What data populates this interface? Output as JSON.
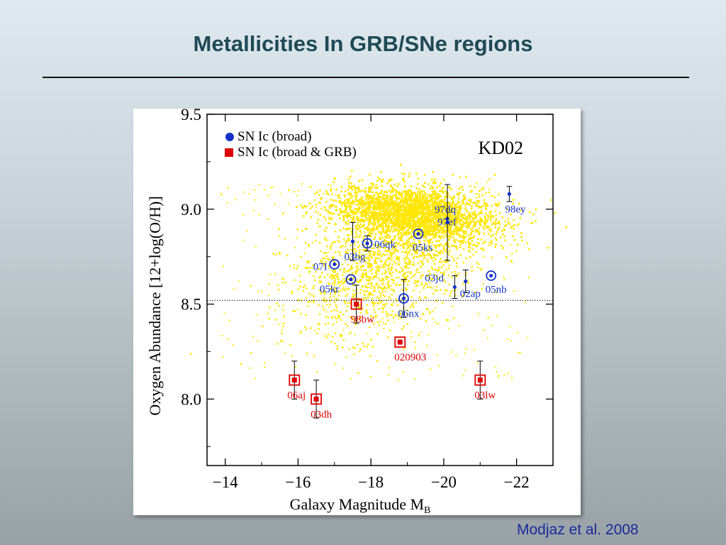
{
  "slide": {
    "title": "Metallicities In GRB/SNe regions",
    "citation": "Modjaz et al. 2008"
  },
  "chart_data": {
    "type": "scatter",
    "title": "",
    "annotation": "KD02",
    "xlabel": "Galaxy Magnitude M",
    "xlabel_subscript": "B",
    "ylabel": "Oxygen Abundance [12+log(O/H)]",
    "xlim": [
      -13.5,
      -23
    ],
    "ylim": [
      7.65,
      9.5
    ],
    "x_axis_reversed": true,
    "x_ticks": [
      -14,
      -16,
      -18,
      -20,
      -22
    ],
    "x_tick_labels": [
      "−14",
      "−16",
      "−18",
      "−20",
      "−22"
    ],
    "y_ticks": [
      8.0,
      8.5,
      9.0,
      9.5
    ],
    "y_tick_labels": [
      "8.0",
      "8.5",
      "9.0",
      "9.5"
    ],
    "reference_line": {
      "y": 8.52,
      "style": "dotted"
    },
    "legend_position": "top-left",
    "background_cloud": {
      "color": "#ffe600",
      "description_shown": false
    },
    "series": [
      {
        "name": "SN Ic (broad)",
        "marker": "circle",
        "color": "#1432c8",
        "points": [
          {
            "label": "98ey",
            "x": -21.8,
            "y": 9.08,
            "err": 0.04,
            "ring": false
          },
          {
            "label": "97dq",
            "x": -20.1,
            "y": 8.95,
            "err": 0.0,
            "ring": false
          },
          {
            "label": "97ef",
            "x": -20.1,
            "y": 8.93,
            "err": 0.2,
            "ring": false
          },
          {
            "label": "05ks",
            "x": -19.3,
            "y": 8.87,
            "err": 0.0,
            "ring": true
          },
          {
            "label": "06qk",
            "x": -17.9,
            "y": 8.82,
            "err": 0.04,
            "ring": true
          },
          {
            "label": "03bg",
            "x": -17.5,
            "y": 8.83,
            "err": 0.1,
            "ring": false
          },
          {
            "label": "07I",
            "x": -17.0,
            "y": 8.71,
            "err": 0.0,
            "ring": true
          },
          {
            "label": "05kr",
            "x": -17.45,
            "y": 8.63,
            "err": 0.0,
            "ring": true
          },
          {
            "label": "06nx",
            "x": -18.9,
            "y": 8.53,
            "err": 0.1,
            "ring": true
          },
          {
            "label": "03jd",
            "x": -20.3,
            "y": 8.59,
            "err": 0.06,
            "ring": false
          },
          {
            "label": "02ap",
            "x": -20.6,
            "y": 8.62,
            "err": 0.06,
            "ring": false
          },
          {
            "label": "05nb",
            "x": -21.3,
            "y": 8.65,
            "err": 0.0,
            "ring": true
          }
        ]
      },
      {
        "name": "SN Ic (broad & GRB)",
        "marker": "square",
        "color": "#e00000",
        "points": [
          {
            "label": "98bw",
            "x": -17.6,
            "y": 8.5,
            "err": 0.1,
            "ring": true
          },
          {
            "label": "020903",
            "x": -18.8,
            "y": 8.3,
            "err": 0.0,
            "ring": true
          },
          {
            "label": "06aj",
            "x": -15.9,
            "y": 8.1,
            "err": 0.1,
            "ring": true
          },
          {
            "label": "03dh",
            "x": -16.5,
            "y": 8.0,
            "err": 0.1,
            "ring": true
          },
          {
            "label": "03lw",
            "x": -21.0,
            "y": 8.1,
            "err": 0.1,
            "ring": true
          }
        ]
      }
    ]
  }
}
